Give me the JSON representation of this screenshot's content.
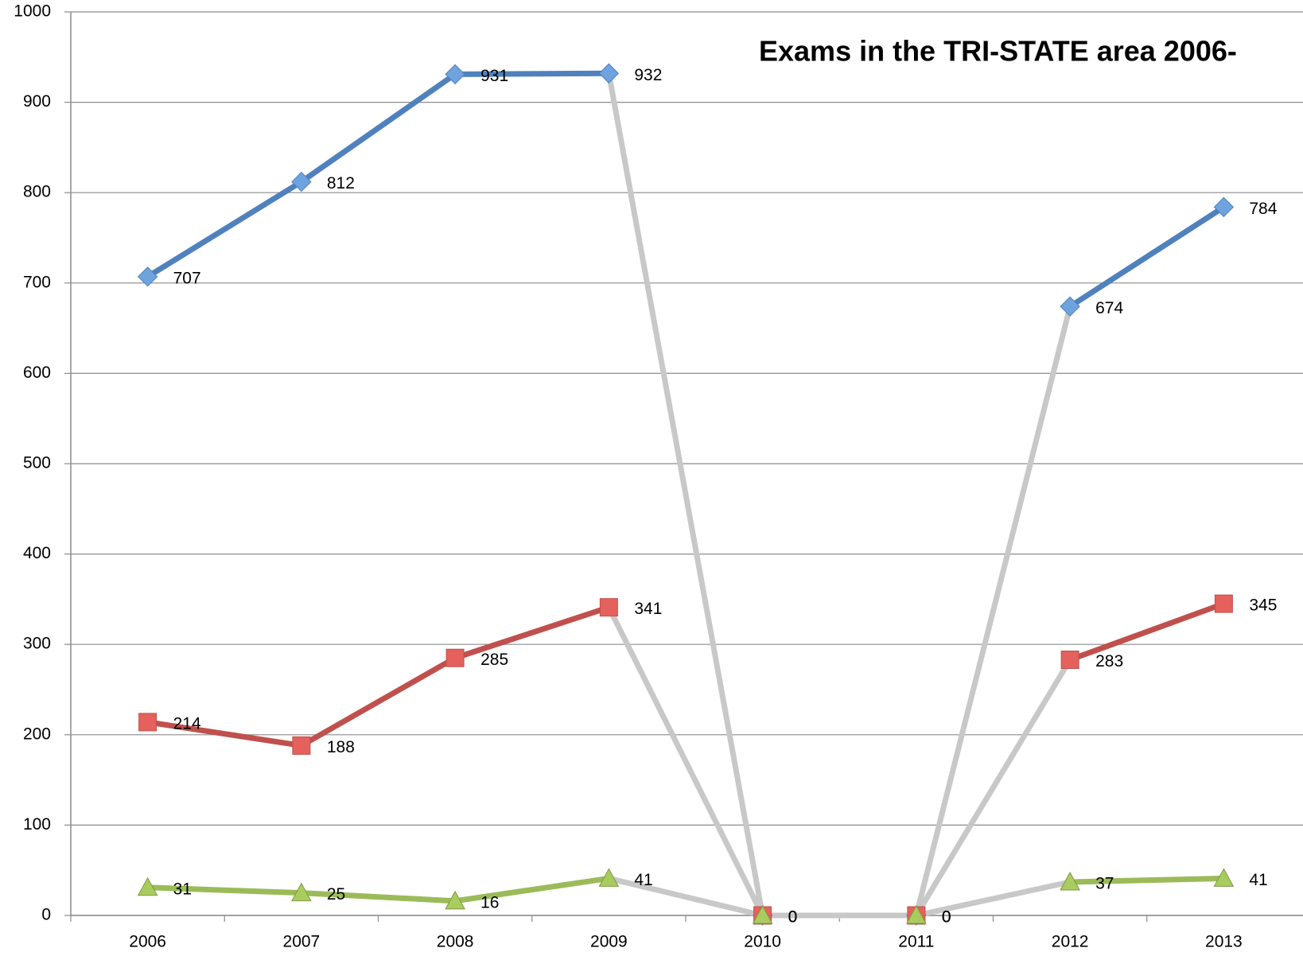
{
  "chart_data": {
    "type": "line",
    "title": "Exams in the TRI-STATE area 2006-",
    "categories": [
      "2006",
      "2007",
      "2008",
      "2009",
      "2010",
      "2011",
      "2012",
      "2013"
    ],
    "series": [
      {
        "color": "#4f81bd",
        "marker": "diamond",
        "marker_color": "#6fa3de",
        "values": [
          707,
          812,
          931,
          932,
          0,
          0,
          674,
          784
        ]
      },
      {
        "color": "#c0504d",
        "marker": "square",
        "marker_color": "#e5615d",
        "values": [
          214,
          188,
          285,
          341,
          0,
          0,
          283,
          345
        ]
      },
      {
        "color": "#9bbb59",
        "marker": "triangle",
        "marker_color": "#a9cc5e",
        "values": [
          31,
          25,
          16,
          41,
          0,
          0,
          37,
          41
        ]
      }
    ],
    "zero_segment_color": "#c8c8c8",
    "ylim": [
      0,
      1000
    ],
    "yticks": [
      0,
      100,
      200,
      300,
      400,
      500,
      600,
      700,
      800,
      900,
      1000
    ],
    "grid": true
  }
}
